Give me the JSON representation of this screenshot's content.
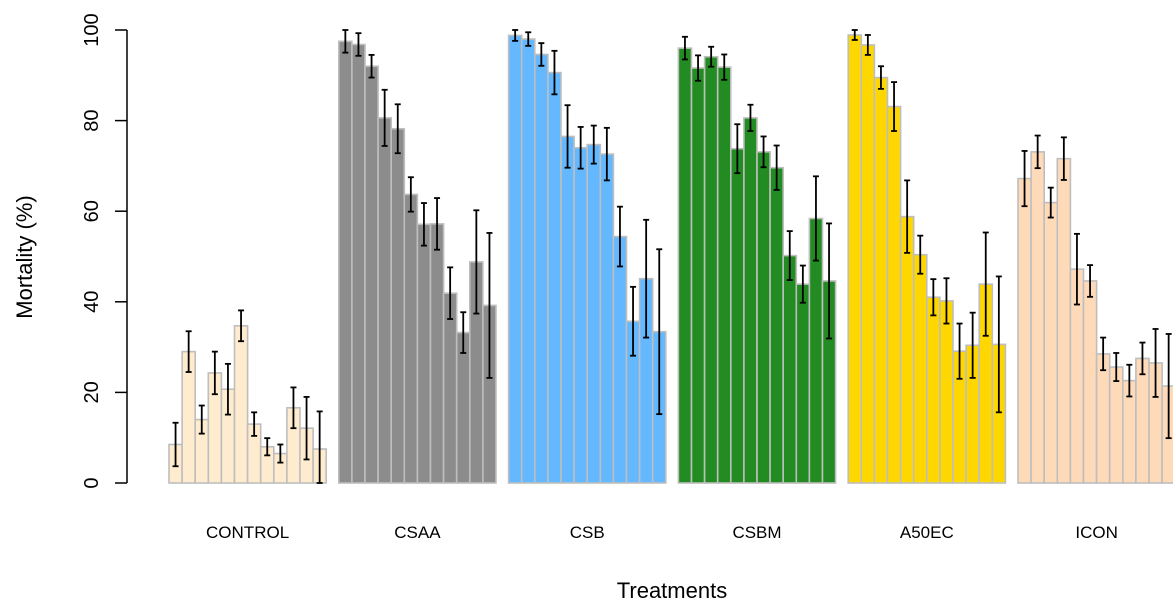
{
  "chart_data": {
    "type": "bar",
    "title": "",
    "xlabel": "Treatments",
    "ylabel": "Mortality (%)",
    "ylim": [
      0,
      100
    ],
    "yticks": [
      0,
      20,
      40,
      60,
      80,
      100
    ],
    "tick_labels": [
      "0",
      "20",
      "40",
      "60",
      "80",
      "100"
    ],
    "grid": false,
    "legend": "none",
    "groups": [
      {
        "name": "CONTROL",
        "color": "#FFEBCD",
        "values": [
          8.5,
          29.0,
          14.0,
          24.3,
          20.7,
          34.7,
          13.0,
          8.0,
          6.5,
          16.6,
          12.1,
          7.5
        ],
        "errors": [
          4.8,
          4.5,
          3.1,
          4.7,
          5.6,
          3.4,
          2.6,
          1.9,
          2.0,
          4.5,
          6.9,
          8.3
        ]
      },
      {
        "name": "CSAA",
        "color": "#8C8C8C",
        "values": [
          97.5,
          96.8,
          92.0,
          80.6,
          78.2,
          63.7,
          57.1,
          57.2,
          41.9,
          33.2,
          48.8,
          39.2
        ],
        "errors": [
          2.5,
          2.5,
          2.5,
          6.2,
          5.4,
          3.8,
          4.7,
          5.7,
          5.7,
          4.5,
          11.4,
          16.0
        ]
      },
      {
        "name": "CSB",
        "color": "#63B8FF",
        "values": [
          98.8,
          98.0,
          94.6,
          90.6,
          76.5,
          74.0,
          74.7,
          72.6,
          54.4,
          35.7,
          45.1,
          33.4
        ],
        "errors": [
          1.2,
          1.5,
          2.5,
          4.8,
          6.9,
          4.6,
          4.2,
          5.8,
          6.6,
          7.6,
          13.0,
          18.2
        ]
      },
      {
        "name": "CSBM",
        "color": "#228B22",
        "values": [
          96.0,
          91.6,
          94.1,
          91.8,
          73.8,
          80.6,
          73.1,
          69.6,
          50.2,
          43.9,
          58.4,
          44.6
        ],
        "errors": [
          2.5,
          2.8,
          2.2,
          2.8,
          5.4,
          2.9,
          3.4,
          4.9,
          5.4,
          4.1,
          9.3,
          12.7
        ]
      },
      {
        "name": "A50EC",
        "color": "#FFD700",
        "values": [
          98.9,
          96.7,
          89.5,
          83.1,
          58.8,
          50.4,
          41.0,
          40.2,
          29.1,
          30.4,
          43.9,
          30.6
        ],
        "errors": [
          1.1,
          2.2,
          2.5,
          5.4,
          8.0,
          4.2,
          4.0,
          5.0,
          6.1,
          7.2,
          11.4,
          15.0
        ]
      },
      {
        "name": "ICON",
        "color": "#FFDAB9",
        "values": [
          67.2,
          73.1,
          61.9,
          71.6,
          47.2,
          44.6,
          28.5,
          25.6,
          22.6,
          27.5,
          26.5,
          21.4
        ],
        "errors": [
          6.1,
          3.6,
          3.3,
          4.7,
          7.8,
          3.5,
          3.6,
          3.1,
          3.5,
          3.5,
          7.5,
          11.5
        ]
      }
    ]
  }
}
